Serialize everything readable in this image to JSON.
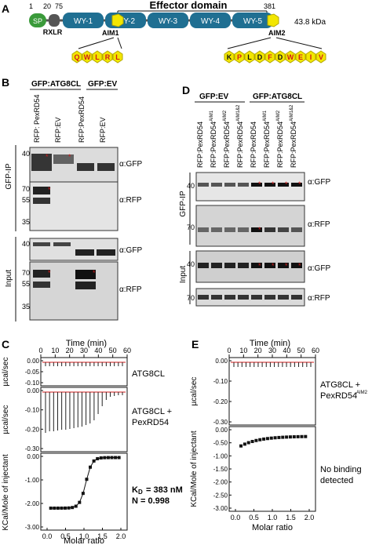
{
  "panelA": {
    "letter": "A",
    "title": "Effector domain",
    "pos_1": "1",
    "pos_20": "20",
    "pos_75": "75",
    "pos_381": "381",
    "sp": "SP",
    "rxlr": "RXLR",
    "wy": [
      "WY-1",
      "WY-2",
      "WY-3",
      "WY-4",
      "WY-5"
    ],
    "kda": "43.8 kDa",
    "aim1": "AIM1",
    "aim2": "AIM2",
    "aim1_seq": [
      "Q",
      "W",
      "L",
      "R",
      "L"
    ],
    "aim2_seq": [
      "K",
      "P",
      "L",
      "D",
      "F",
      "D",
      "W",
      "E",
      "I",
      "V"
    ],
    "colors": {
      "sp": "#3a9a3a",
      "wy": "#1f6f92",
      "aim": "#f2e600",
      "rxlr": "#555555",
      "red": "#d11a1a"
    }
  },
  "panelB": {
    "letter": "B",
    "group1": "GFP:ATG8CL",
    "group2": "GFP:EV",
    "lanes": [
      "RFP: PexRD54",
      "RFP:EV",
      "RFP:PexRD54",
      "RFP:EV"
    ],
    "ip_label": "GFP-IP",
    "input_label": "Input",
    "blots": [
      {
        "label": "α:GFP",
        "markers": [
          "40"
        ]
      },
      {
        "label": "α:RFP",
        "markers": [
          "70",
          "55",
          "35"
        ]
      },
      {
        "label": "α:GFP",
        "markers": [
          "40"
        ]
      },
      {
        "label": "α:RFP",
        "markers": [
          "70",
          "55",
          "35"
        ]
      }
    ]
  },
  "panelC": {
    "letter": "C",
    "time_label": "Time (min)",
    "time_ticks": [
      "0",
      "10",
      "20",
      "30",
      "40",
      "50",
      "60"
    ],
    "ylabel_top": "µcal/sec",
    "ylabel_mid": "µcal/sec",
    "top_ticks": [
      "0.00",
      "-0.05",
      "-0.10"
    ],
    "mid_ticks": [
      "0.00",
      "-0.10",
      "-0.20",
      "-0.30"
    ],
    "top_label": "ATG8CL",
    "mid_label_1": "ATG8CL +",
    "mid_label_2": "PexRD54",
    "ylabel_bottom": "KCal/Mole of injectant",
    "bottom_ticks": [
      "0.00",
      "-1.00",
      "-2.00",
      "-3.00"
    ],
    "xlabel": "Molar ratio",
    "x_ticks": [
      "0.0",
      "0.5",
      "1.0",
      "1.5",
      "2.0"
    ],
    "kd_text": "= 383 nM",
    "n_text": "N = 0.998"
  },
  "panelD": {
    "letter": "D",
    "group1": "GFP:EV",
    "group2": "GFP:ATG8CL",
    "lanes": [
      "RFP:PexRD54",
      "RFP:PexRD54",
      "RFP:PexRD54",
      "RFP:PexRD54",
      "RFP:PexRD54",
      "RFP:PexRD54",
      "RFP:PexRD54",
      "RFP:PexRD54"
    ],
    "lane_sups": [
      "",
      "AIM1",
      "AIM2",
      "AIM1&2",
      "",
      "AIM1",
      "AIM2",
      "AIM1&2"
    ],
    "ip_label": "GFP-IP",
    "input_label": "Input",
    "blots": [
      {
        "label": "α:GFP",
        "marker": "40"
      },
      {
        "label": "α:RFP",
        "marker": "70"
      },
      {
        "label": "α:GFP",
        "marker": "40"
      },
      {
        "label": "α:RFP",
        "marker": "70"
      }
    ]
  },
  "panelE": {
    "letter": "E",
    "time_label": "Time (min)",
    "time_ticks": [
      "0",
      "10",
      "20",
      "30",
      "40",
      "50",
      "60"
    ],
    "ylabel_top": "µcal/sec",
    "top_ticks": [
      "0.00",
      "-0.10",
      "-0.20",
      "-0.30"
    ],
    "label_1": "ATG8CL +",
    "label_2": "PexRD54",
    "label_2_sup": "AIM2",
    "ylabel_bottom": "KCal/Mole of injectant",
    "bottom_ticks": [
      "0.00",
      "-0.50",
      "-1.00",
      "-1.50",
      "-2.00",
      "-2.50",
      "-3.00"
    ],
    "xlabel": "Molar ratio",
    "x_ticks": [
      "0.0",
      "0.5",
      "1.0",
      "1.5",
      "2.0"
    ],
    "note_1": "No binding",
    "note_2": "detected"
  }
}
